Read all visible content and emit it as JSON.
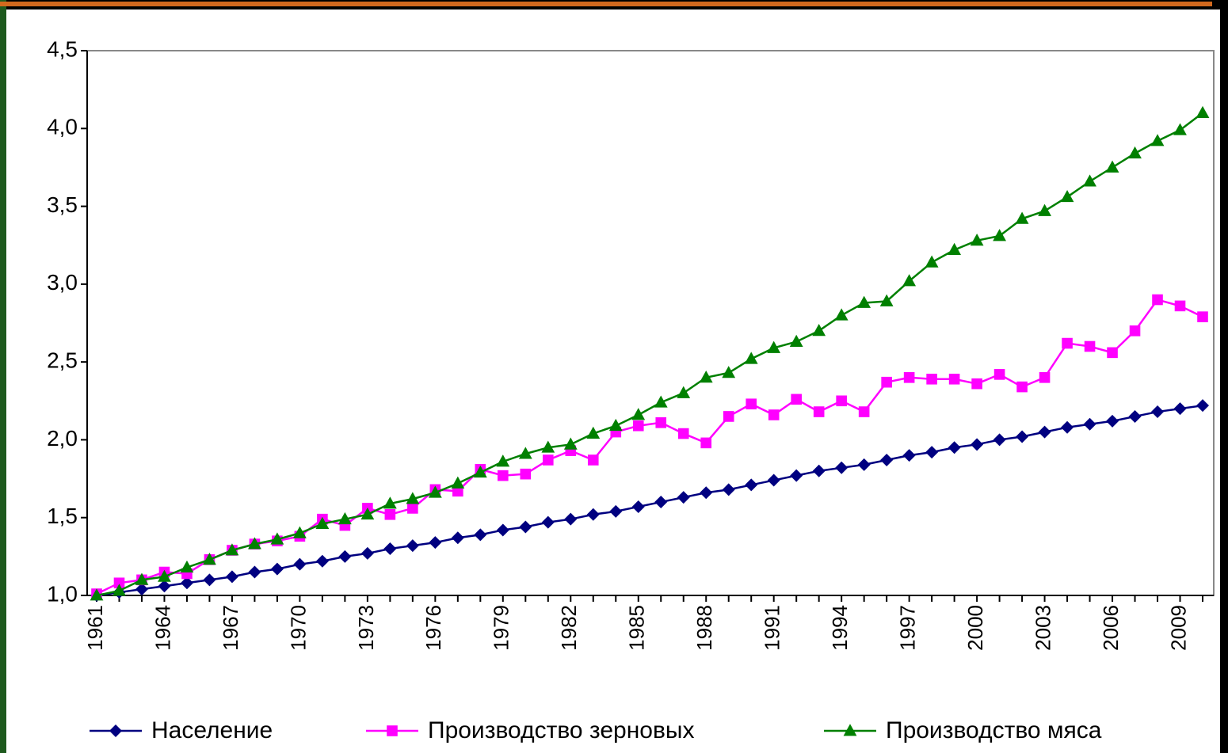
{
  "chart_data": {
    "type": "line",
    "categories": [
      "1961",
      null,
      null,
      "1964",
      null,
      null,
      "1967",
      null,
      null,
      "1970",
      null,
      null,
      "1973",
      null,
      null,
      "1976",
      null,
      null,
      "1979",
      null,
      null,
      "1982",
      null,
      null,
      "1985",
      null,
      null,
      "1988",
      null,
      null,
      "1991",
      null,
      null,
      "1994",
      null,
      null,
      "1997",
      null,
      null,
      "2000",
      null,
      null,
      "2003",
      null,
      null,
      "2006",
      null,
      null,
      "2009",
      null
    ],
    "series": [
      {
        "name": "Население",
        "color": "#000080",
        "marker": "diamond",
        "values": [
          1.0,
          1.02,
          1.04,
          1.06,
          1.08,
          1.1,
          1.12,
          1.15,
          1.17,
          1.2,
          1.22,
          1.25,
          1.27,
          1.3,
          1.32,
          1.34,
          1.37,
          1.39,
          1.42,
          1.44,
          1.47,
          1.49,
          1.52,
          1.54,
          1.57,
          1.6,
          1.63,
          1.66,
          1.68,
          1.71,
          1.74,
          1.77,
          1.8,
          1.82,
          1.84,
          1.87,
          1.9,
          1.92,
          1.95,
          1.97,
          2.0,
          2.02,
          2.05,
          2.08,
          2.1,
          2.12,
          2.15,
          2.18,
          2.2,
          2.22
        ]
      },
      {
        "name": "Производство зерновых",
        "color": "#ff00ff",
        "marker": "square",
        "values": [
          1.01,
          1.08,
          1.1,
          1.15,
          1.14,
          1.23,
          1.29,
          1.33,
          1.35,
          1.38,
          1.49,
          1.45,
          1.56,
          1.52,
          1.56,
          1.68,
          1.67,
          1.81,
          1.77,
          1.78,
          1.87,
          1.93,
          1.87,
          2.05,
          2.09,
          2.11,
          2.04,
          1.98,
          2.15,
          2.23,
          2.16,
          2.26,
          2.18,
          2.25,
          2.18,
          2.37,
          2.4,
          2.39,
          2.39,
          2.36,
          2.42,
          2.34,
          2.4,
          2.62,
          2.6,
          2.56,
          2.7,
          2.9,
          2.86,
          2.79
        ]
      },
      {
        "name": "Производство мяса",
        "color": "#008000",
        "marker": "triangle",
        "values": [
          1.0,
          1.03,
          1.1,
          1.12,
          1.18,
          1.23,
          1.29,
          1.33,
          1.36,
          1.4,
          1.46,
          1.49,
          1.52,
          1.59,
          1.62,
          1.66,
          1.72,
          1.79,
          1.86,
          1.91,
          1.95,
          1.97,
          2.04,
          2.09,
          2.16,
          2.24,
          2.3,
          2.4,
          2.43,
          2.52,
          2.59,
          2.63,
          2.7,
          2.8,
          2.88,
          2.89,
          3.02,
          3.14,
          3.22,
          3.28,
          3.31,
          3.42,
          3.47,
          3.56,
          3.66,
          3.75,
          3.84,
          3.92,
          3.99,
          4.1
        ]
      }
    ],
    "ylim": [
      1.0,
      4.5
    ],
    "yticks": [
      {
        "value": 1.0,
        "label": "1,0"
      },
      {
        "value": 1.5,
        "label": "1,5"
      },
      {
        "value": 2.0,
        "label": "2,0"
      },
      {
        "value": 2.5,
        "label": "2,5"
      },
      {
        "value": 3.0,
        "label": "3,0"
      },
      {
        "value": 3.5,
        "label": "3,5"
      },
      {
        "value": 4.0,
        "label": "4,0"
      },
      {
        "value": 4.5,
        "label": "4,5"
      }
    ],
    "grid": false,
    "legend": "bottom"
  }
}
